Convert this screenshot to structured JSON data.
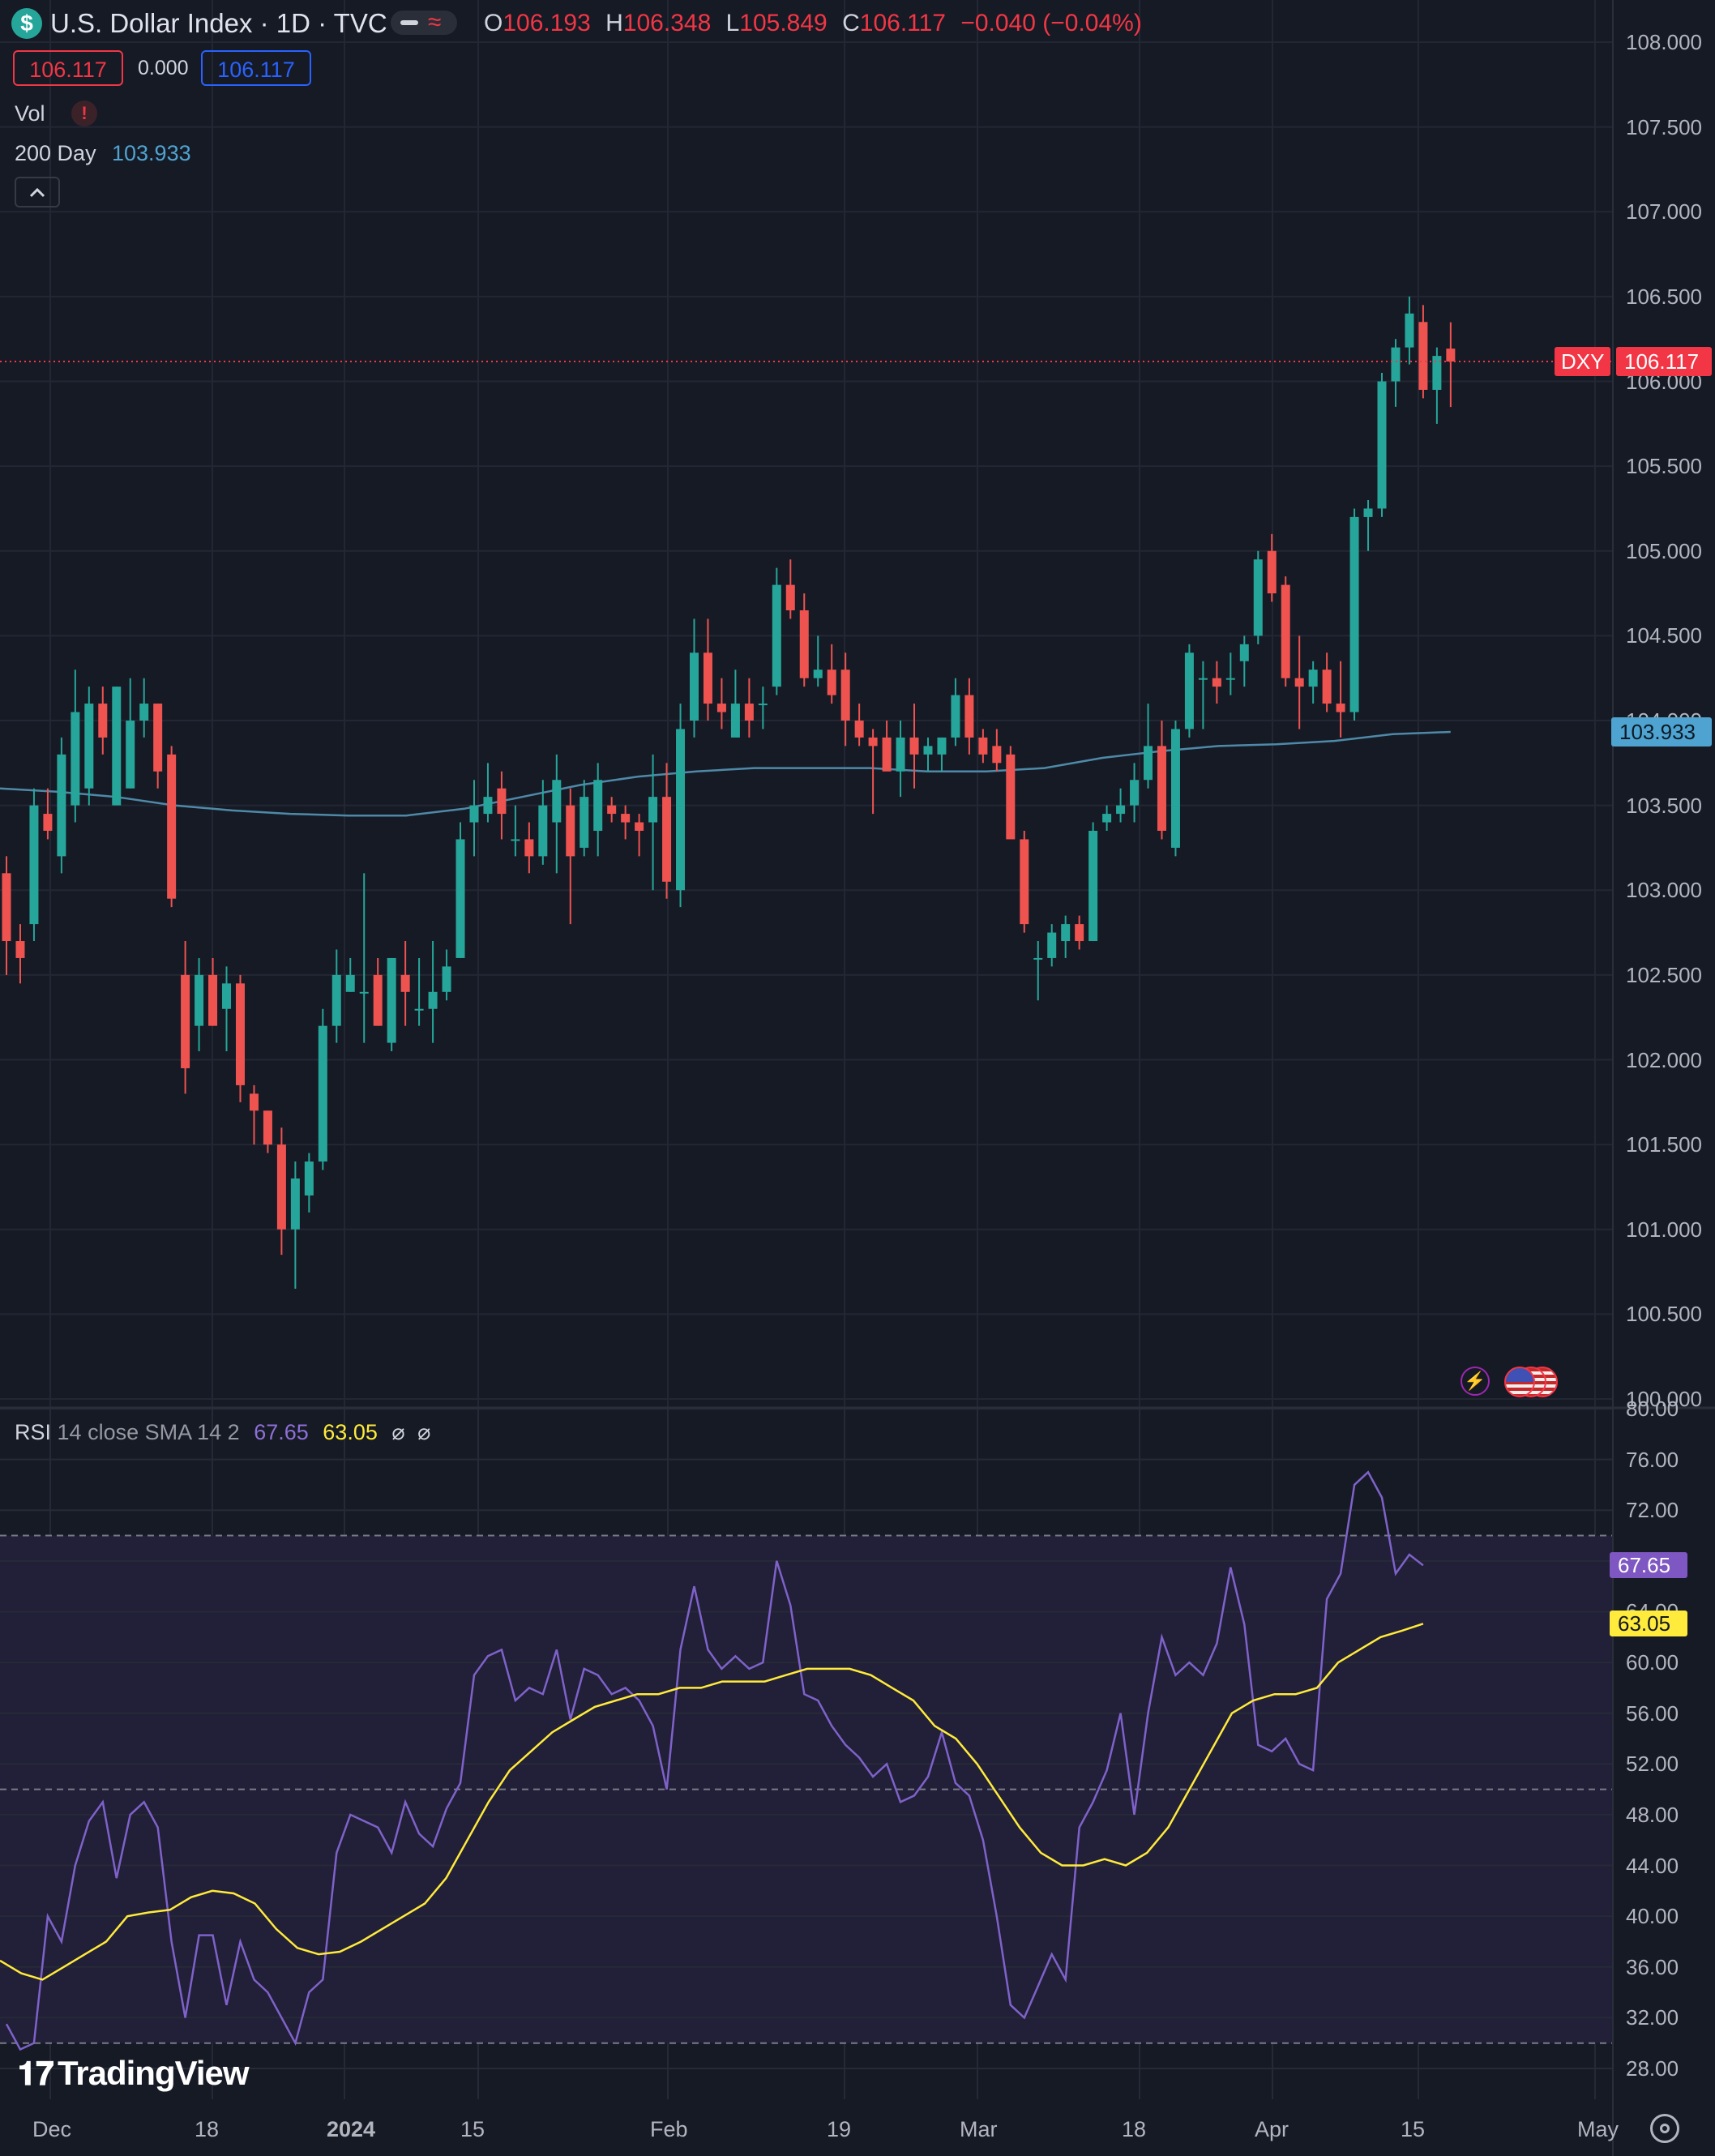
{
  "header": {
    "symbol_title": "U.S. Dollar Index · 1D · TVC",
    "ohlc": {
      "o_label": "O",
      "o_value": "106.193",
      "h_label": "H",
      "h_value": "106.348",
      "l_label": "L",
      "l_value": "105.849",
      "c_label": "C",
      "c_value": "106.117",
      "change": "−0.040 (−0.04%)"
    },
    "sell_price": "106.117",
    "spread": "0.000",
    "buy_price": "106.117",
    "vol_label": "Vol",
    "ma_label": "200 Day",
    "ma_value": "103.933"
  },
  "rsi_legend": {
    "label": "RSI",
    "params": "14 close SMA 14 2",
    "rsi_value": "67.65",
    "sma_value": "63.05",
    "sym1": "⌀",
    "sym2": "⌀"
  },
  "price_tags": {
    "symbol": "DXY",
    "last_price": "106.117",
    "ma_price": "103.933",
    "rsi_value": "67.65",
    "rsi_sma_value": "63.05"
  },
  "brand": "TradingView",
  "colors": {
    "background": "#161a25",
    "up": "#26a69a",
    "down": "#ef5350",
    "ma": "#4e8aa8",
    "rsi": "#7e57c2",
    "rsi_sma": "#ffeb3b"
  },
  "chart_data": [
    {
      "type": "candlestick",
      "title": "U.S. Dollar Index · 1D · TVC",
      "y_ticks": [
        "108.000",
        "107.500",
        "107.000",
        "106.500",
        "106.000",
        "105.500",
        "105.000",
        "104.500",
        "104.000",
        "103.500",
        "103.000",
        "102.500",
        "102.000",
        "101.500",
        "101.000",
        "100.500",
        "100.000"
      ],
      "ylim": [
        100.0,
        108.0
      ],
      "x_ticks": [
        "Dec",
        "18",
        "2024",
        "15",
        "Feb",
        "19",
        "Mar",
        "18",
        "Apr",
        "15",
        "May"
      ],
      "candles": [
        {
          "o": 103.1,
          "h": 103.2,
          "l": 102.5,
          "c": 102.7
        },
        {
          "o": 102.7,
          "h": 102.8,
          "l": 102.45,
          "c": 102.6
        },
        {
          "o": 102.8,
          "h": 103.6,
          "l": 102.7,
          "c": 103.5
        },
        {
          "o": 103.45,
          "h": 103.6,
          "l": 103.3,
          "c": 103.35
        },
        {
          "o": 103.2,
          "h": 103.9,
          "l": 103.1,
          "c": 103.8
        },
        {
          "o": 103.5,
          "h": 104.3,
          "l": 103.4,
          "c": 104.05
        },
        {
          "o": 103.6,
          "h": 104.2,
          "l": 103.5,
          "c": 104.1
        },
        {
          "o": 104.1,
          "h": 104.2,
          "l": 103.8,
          "c": 103.9
        },
        {
          "o": 103.5,
          "h": 104.2,
          "l": 103.5,
          "c": 104.2
        },
        {
          "o": 103.6,
          "h": 104.25,
          "l": 103.6,
          "c": 104.0
        },
        {
          "o": 104.0,
          "h": 104.25,
          "l": 103.9,
          "c": 104.1
        },
        {
          "o": 104.1,
          "h": 104.1,
          "l": 103.6,
          "c": 103.7
        },
        {
          "o": 103.8,
          "h": 103.85,
          "l": 102.9,
          "c": 102.95
        },
        {
          "o": 102.5,
          "h": 102.7,
          "l": 101.8,
          "c": 101.95
        },
        {
          "o": 102.2,
          "h": 102.6,
          "l": 102.05,
          "c": 102.5
        },
        {
          "o": 102.5,
          "h": 102.6,
          "l": 102.2,
          "c": 102.2
        },
        {
          "o": 102.3,
          "h": 102.55,
          "l": 102.05,
          "c": 102.45
        },
        {
          "o": 102.45,
          "h": 102.5,
          "l": 101.75,
          "c": 101.85
        },
        {
          "o": 101.8,
          "h": 101.85,
          "l": 101.5,
          "c": 101.7
        },
        {
          "o": 101.7,
          "h": 101.7,
          "l": 101.45,
          "c": 101.5
        },
        {
          "o": 101.5,
          "h": 101.6,
          "l": 100.85,
          "c": 101.0
        },
        {
          "o": 101.0,
          "h": 101.4,
          "l": 100.65,
          "c": 101.3
        },
        {
          "o": 101.2,
          "h": 101.45,
          "l": 101.1,
          "c": 101.4
        },
        {
          "o": 101.4,
          "h": 102.3,
          "l": 101.35,
          "c": 102.2
        },
        {
          "o": 102.2,
          "h": 102.65,
          "l": 102.1,
          "c": 102.5
        },
        {
          "o": 102.4,
          "h": 102.6,
          "l": 102.4,
          "c": 102.5
        },
        {
          "o": 102.4,
          "h": 103.1,
          "l": 102.1,
          "c": 102.4
        },
        {
          "o": 102.5,
          "h": 102.6,
          "l": 102.2,
          "c": 102.2
        },
        {
          "o": 102.1,
          "h": 102.6,
          "l": 102.05,
          "c": 102.6
        },
        {
          "o": 102.5,
          "h": 102.7,
          "l": 102.2,
          "c": 102.4
        },
        {
          "o": 102.3,
          "h": 102.6,
          "l": 102.2,
          "c": 102.3
        },
        {
          "o": 102.3,
          "h": 102.7,
          "l": 102.1,
          "c": 102.4
        },
        {
          "o": 102.4,
          "h": 102.65,
          "l": 102.35,
          "c": 102.55
        },
        {
          "o": 102.6,
          "h": 103.4,
          "l": 102.6,
          "c": 103.3
        },
        {
          "o": 103.4,
          "h": 103.65,
          "l": 103.2,
          "c": 103.5
        },
        {
          "o": 103.45,
          "h": 103.75,
          "l": 103.4,
          "c": 103.55
        },
        {
          "o": 103.6,
          "h": 103.7,
          "l": 103.3,
          "c": 103.45
        },
        {
          "o": 103.3,
          "h": 103.5,
          "l": 103.2,
          "c": 103.3
        },
        {
          "o": 103.3,
          "h": 103.4,
          "l": 103.1,
          "c": 103.2
        },
        {
          "o": 103.2,
          "h": 103.65,
          "l": 103.15,
          "c": 103.5
        },
        {
          "o": 103.4,
          "h": 103.8,
          "l": 103.1,
          "c": 103.65
        },
        {
          "o": 103.5,
          "h": 103.6,
          "l": 102.8,
          "c": 103.2
        },
        {
          "o": 103.25,
          "h": 103.65,
          "l": 103.2,
          "c": 103.55
        },
        {
          "o": 103.35,
          "h": 103.75,
          "l": 103.2,
          "c": 103.65
        },
        {
          "o": 103.5,
          "h": 103.55,
          "l": 103.4,
          "c": 103.45
        },
        {
          "o": 103.45,
          "h": 103.5,
          "l": 103.3,
          "c": 103.4
        },
        {
          "o": 103.4,
          "h": 103.45,
          "l": 103.2,
          "c": 103.35
        },
        {
          "o": 103.4,
          "h": 103.8,
          "l": 103.0,
          "c": 103.55
        },
        {
          "o": 103.55,
          "h": 103.75,
          "l": 102.95,
          "c": 103.05
        },
        {
          "o": 103.0,
          "h": 104.1,
          "l": 102.9,
          "c": 103.95
        },
        {
          "o": 104.0,
          "h": 104.6,
          "l": 103.9,
          "c": 104.4
        },
        {
          "o": 104.4,
          "h": 104.6,
          "l": 104.0,
          "c": 104.1
        },
        {
          "o": 104.1,
          "h": 104.25,
          "l": 103.95,
          "c": 104.05
        },
        {
          "o": 103.9,
          "h": 104.3,
          "l": 103.95,
          "c": 104.1
        },
        {
          "o": 104.1,
          "h": 104.25,
          "l": 103.9,
          "c": 104.0
        },
        {
          "o": 104.1,
          "h": 104.2,
          "l": 103.95,
          "c": 104.1
        },
        {
          "o": 104.2,
          "h": 104.9,
          "l": 104.15,
          "c": 104.8
        },
        {
          "o": 104.8,
          "h": 104.95,
          "l": 104.6,
          "c": 104.65
        },
        {
          "o": 104.65,
          "h": 104.75,
          "l": 104.2,
          "c": 104.25
        },
        {
          "o": 104.25,
          "h": 104.5,
          "l": 104.2,
          "c": 104.3
        },
        {
          "o": 104.3,
          "h": 104.45,
          "l": 104.1,
          "c": 104.15
        },
        {
          "o": 104.3,
          "h": 104.4,
          "l": 103.85,
          "c": 104.0
        },
        {
          "o": 104.0,
          "h": 104.1,
          "l": 103.85,
          "c": 103.9
        },
        {
          "o": 103.9,
          "h": 103.95,
          "l": 103.45,
          "c": 103.85
        },
        {
          "o": 103.9,
          "h": 104.0,
          "l": 103.75,
          "c": 103.7
        },
        {
          "o": 103.7,
          "h": 104.0,
          "l": 103.55,
          "c": 103.9
        },
        {
          "o": 103.9,
          "h": 104.1,
          "l": 103.6,
          "c": 103.8
        },
        {
          "o": 103.8,
          "h": 103.9,
          "l": 103.7,
          "c": 103.85
        },
        {
          "o": 103.8,
          "h": 103.9,
          "l": 103.7,
          "c": 103.9
        },
        {
          "o": 103.9,
          "h": 104.25,
          "l": 103.85,
          "c": 104.15
        },
        {
          "o": 104.15,
          "h": 104.25,
          "l": 103.8,
          "c": 103.9
        },
        {
          "o": 103.9,
          "h": 103.95,
          "l": 103.75,
          "c": 103.8
        },
        {
          "o": 103.85,
          "h": 103.95,
          "l": 103.7,
          "c": 103.75
        },
        {
          "o": 103.8,
          "h": 103.85,
          "l": 103.3,
          "c": 103.3
        },
        {
          "o": 103.3,
          "h": 103.35,
          "l": 102.75,
          "c": 102.8
        },
        {
          "o": 102.6,
          "h": 102.7,
          "l": 102.35,
          "c": 102.6
        },
        {
          "o": 102.6,
          "h": 102.8,
          "l": 102.55,
          "c": 102.75
        },
        {
          "o": 102.7,
          "h": 102.85,
          "l": 102.6,
          "c": 102.8
        },
        {
          "o": 102.8,
          "h": 102.85,
          "l": 102.65,
          "c": 102.7
        },
        {
          "o": 102.7,
          "h": 103.4,
          "l": 102.7,
          "c": 103.35
        },
        {
          "o": 103.4,
          "h": 103.5,
          "l": 103.35,
          "c": 103.45
        },
        {
          "o": 103.45,
          "h": 103.6,
          "l": 103.4,
          "c": 103.5
        },
        {
          "o": 103.5,
          "h": 103.75,
          "l": 103.4,
          "c": 103.65
        },
        {
          "o": 103.65,
          "h": 104.1,
          "l": 103.6,
          "c": 103.85
        },
        {
          "o": 103.85,
          "h": 104.0,
          "l": 103.3,
          "c": 103.35
        },
        {
          "o": 103.25,
          "h": 104.0,
          "l": 103.2,
          "c": 103.95
        },
        {
          "o": 103.95,
          "h": 104.45,
          "l": 103.9,
          "c": 104.4
        },
        {
          "o": 104.25,
          "h": 104.35,
          "l": 103.95,
          "c": 104.25
        },
        {
          "o": 104.25,
          "h": 104.35,
          "l": 104.1,
          "c": 104.2
        },
        {
          "o": 104.25,
          "h": 104.4,
          "l": 104.15,
          "c": 104.25
        },
        {
          "o": 104.35,
          "h": 104.5,
          "l": 104.2,
          "c": 104.45
        },
        {
          "o": 104.5,
          "h": 105.0,
          "l": 104.45,
          "c": 104.95
        },
        {
          "o": 105.0,
          "h": 105.1,
          "l": 104.7,
          "c": 104.75
        },
        {
          "o": 104.8,
          "h": 104.85,
          "l": 104.2,
          "c": 104.25
        },
        {
          "o": 104.25,
          "h": 104.5,
          "l": 103.95,
          "c": 104.2
        },
        {
          "o": 104.2,
          "h": 104.35,
          "l": 104.1,
          "c": 104.3
        },
        {
          "o": 104.3,
          "h": 104.4,
          "l": 104.05,
          "c": 104.1
        },
        {
          "o": 104.1,
          "h": 104.35,
          "l": 103.9,
          "c": 104.05
        },
        {
          "o": 104.05,
          "h": 105.25,
          "l": 104.0,
          "c": 105.2
        },
        {
          "o": 105.2,
          "h": 105.3,
          "l": 105.0,
          "c": 105.25
        },
        {
          "o": 105.25,
          "h": 106.05,
          "l": 105.2,
          "c": 106.0
        },
        {
          "o": 106.0,
          "h": 106.25,
          "l": 105.85,
          "c": 106.2
        },
        {
          "o": 106.2,
          "h": 106.5,
          "l": 106.1,
          "c": 106.4
        },
        {
          "o": 106.35,
          "h": 106.45,
          "l": 105.9,
          "c": 105.95
        },
        {
          "o": 105.95,
          "h": 106.2,
          "l": 105.75,
          "c": 106.15
        },
        {
          "o": 106.193,
          "h": 106.348,
          "l": 105.849,
          "c": 106.117
        }
      ],
      "ma200": [
        103.6,
        103.58,
        103.55,
        103.5,
        103.47,
        103.45,
        103.44,
        103.44,
        103.48,
        103.55,
        103.62,
        103.67,
        103.7,
        103.72,
        103.72,
        103.72,
        103.7,
        103.7,
        103.72,
        103.78,
        103.82,
        103.85,
        103.86,
        103.88,
        103.92,
        103.933
      ]
    },
    {
      "type": "line",
      "title": "RSI 14 close SMA 14 2",
      "y_ticks": [
        "80.00",
        "76.00",
        "72.00",
        "68.00",
        "64.00",
        "60.00",
        "56.00",
        "52.00",
        "48.00",
        "44.00",
        "40.00",
        "36.00",
        "32.00",
        "28.00"
      ],
      "ylim": [
        27.0,
        80.0
      ],
      "bands": [
        30,
        50,
        70
      ],
      "series": [
        {
          "name": "RSI",
          "values": [
            31.5,
            29.5,
            30.0,
            40.0,
            38.0,
            44.0,
            47.5,
            49.0,
            43.0,
            48.0,
            49.0,
            47.0,
            38.0,
            32.0,
            38.5,
            38.5,
            33.0,
            38.0,
            35.0,
            34.0,
            32.0,
            30.0,
            34.0,
            35.0,
            45.0,
            48.0,
            47.5,
            47.0,
            45.0,
            49.0,
            46.5,
            45.5,
            48.5,
            50.5,
            59.0,
            60.5,
            61.0,
            57.0,
            58.0,
            57.5,
            61.0,
            55.5,
            59.5,
            59.0,
            57.5,
            58.0,
            57.0,
            55.0,
            50.0,
            61.0,
            66.0,
            61.0,
            59.5,
            60.5,
            59.5,
            60.0,
            68.0,
            64.5,
            57.5,
            57.0,
            55.0,
            53.5,
            52.5,
            51.0,
            52.0,
            49.0,
            49.5,
            51.0,
            54.5,
            50.5,
            49.5,
            46.0,
            40.0,
            33.0,
            32.0,
            34.5,
            37.0,
            35.0,
            47.0,
            49.0,
            51.5,
            56.0,
            48.0,
            56.0,
            62.0,
            59.0,
            60.0,
            59.0,
            61.5,
            67.5,
            63.0,
            53.5,
            53.0,
            54.0,
            52.0,
            51.5,
            65.0,
            67.0,
            74.0,
            75.0,
            73.0,
            67.0,
            68.5,
            67.65
          ]
        },
        {
          "name": "SMA",
          "values": [
            36.5,
            35.5,
            35.0,
            36.0,
            37.0,
            38.0,
            40.0,
            40.3,
            40.5,
            41.5,
            42.0,
            41.8,
            41.0,
            39.0,
            37.5,
            37.0,
            37.2,
            38.0,
            39.0,
            40.0,
            41.0,
            43.0,
            46.0,
            49.0,
            51.5,
            53.0,
            54.5,
            55.5,
            56.5,
            57.0,
            57.5,
            57.5,
            58.0,
            58.0,
            58.5,
            58.5,
            58.5,
            59.0,
            59.5,
            59.5,
            59.5,
            59.0,
            58.0,
            57.0,
            55.0,
            54.0,
            52.0,
            49.5,
            47.0,
            45.0,
            44.0,
            44.0,
            44.5,
            44.0,
            45.0,
            47.0,
            50.0,
            53.0,
            56.0,
            57.0,
            57.5,
            57.5,
            58.0,
            60.0,
            61.0,
            62.0,
            62.5,
            63.05
          ]
        }
      ]
    }
  ]
}
